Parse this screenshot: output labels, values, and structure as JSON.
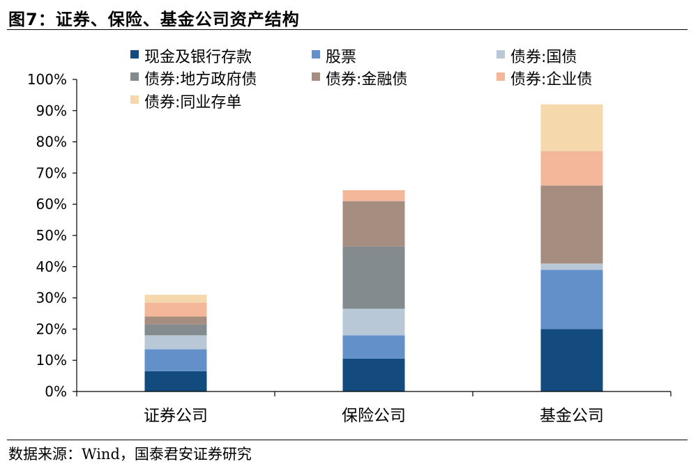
{
  "title": "图7：证券、保险、基金公司资产结构",
  "source": "数据来源：Wind，国泰君安证券研究",
  "chart_data": {
    "type": "bar",
    "stacked": true,
    "categories": [
      "证券公司",
      "保险公司",
      "基金公司"
    ],
    "y_ticks": [
      "0%",
      "10%",
      "20%",
      "30%",
      "40%",
      "50%",
      "60%",
      "70%",
      "80%",
      "90%",
      "100%"
    ],
    "ylim": [
      0,
      100
    ],
    "series": [
      {
        "name": "现金及银行存款",
        "color": "#144b7e",
        "values": [
          6.5,
          10.5,
          20.0
        ]
      },
      {
        "name": "股票",
        "color": "#6390c9",
        "values": [
          7.0,
          7.5,
          19.0
        ]
      },
      {
        "name": "债券:国债",
        "color": "#b8c8d6",
        "values": [
          4.5,
          8.5,
          2.0
        ]
      },
      {
        "name": "债券:地方政府债",
        "color": "#848b8f",
        "values": [
          3.5,
          20.0,
          0.0
        ]
      },
      {
        "name": "债券:金融债",
        "color": "#a58e7f",
        "values": [
          2.5,
          14.5,
          25.0
        ]
      },
      {
        "name": "债券:企业债",
        "color": "#f4b79a",
        "values": [
          4.5,
          3.5,
          11.0
        ]
      },
      {
        "name": "债券:同业存单",
        "color": "#f5d8ac",
        "values": [
          2.5,
          0.0,
          15.0
        ]
      }
    ],
    "legend_position": "top",
    "grid": false
  }
}
